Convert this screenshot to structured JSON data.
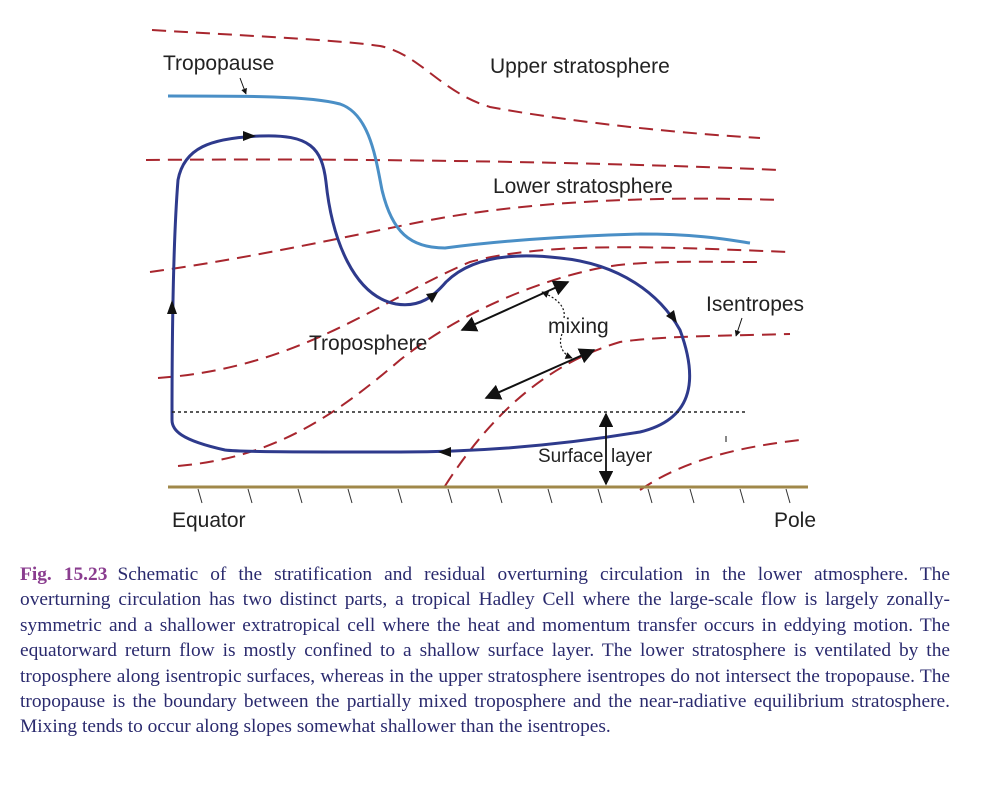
{
  "labels": {
    "tropopause": "Tropopause",
    "upper_stratosphere": "Upper stratosphere",
    "lower_stratosphere": "Lower stratosphere",
    "troposphere": "Troposphere",
    "mixing": "mixing",
    "isentropes": "Isentropes",
    "surface_layer_a": "Surface",
    "surface_layer_b": "layer",
    "equator": "Equator",
    "pole": "Pole"
  },
  "caption": {
    "figure_number": "Fig. 15.23",
    "text": "Schematic of the stratification and residual overturning circulation in the lower atmosphere. The overturning circulation has two distinct parts, a tropical Hadley Cell where the large-scale flow is largely zonally-symmetric and a shallower extratropical cell where the heat and momentum transfer occurs in eddying motion. The equatorward return flow is mostly confined to a shallow surface layer. The lower stratosphere is ventilated by the troposphere along isentropic surfaces, whereas in the upper stratosphere isentropes do not intersect the tropopause. The tropopause is the boundary between the partially mixed troposphere and the near-radiative equilibrium stratosphere. Mixing tends to occur along slopes somewhat shallower than the isentropes."
  },
  "colors": {
    "isentrope": "#a8262e",
    "tropopause": "#4a8fc6",
    "circulation": "#2e3a8c",
    "ground": "#a0884a",
    "caption_text": "#2a2a6e",
    "figure_number": "#8a3d8f"
  }
}
